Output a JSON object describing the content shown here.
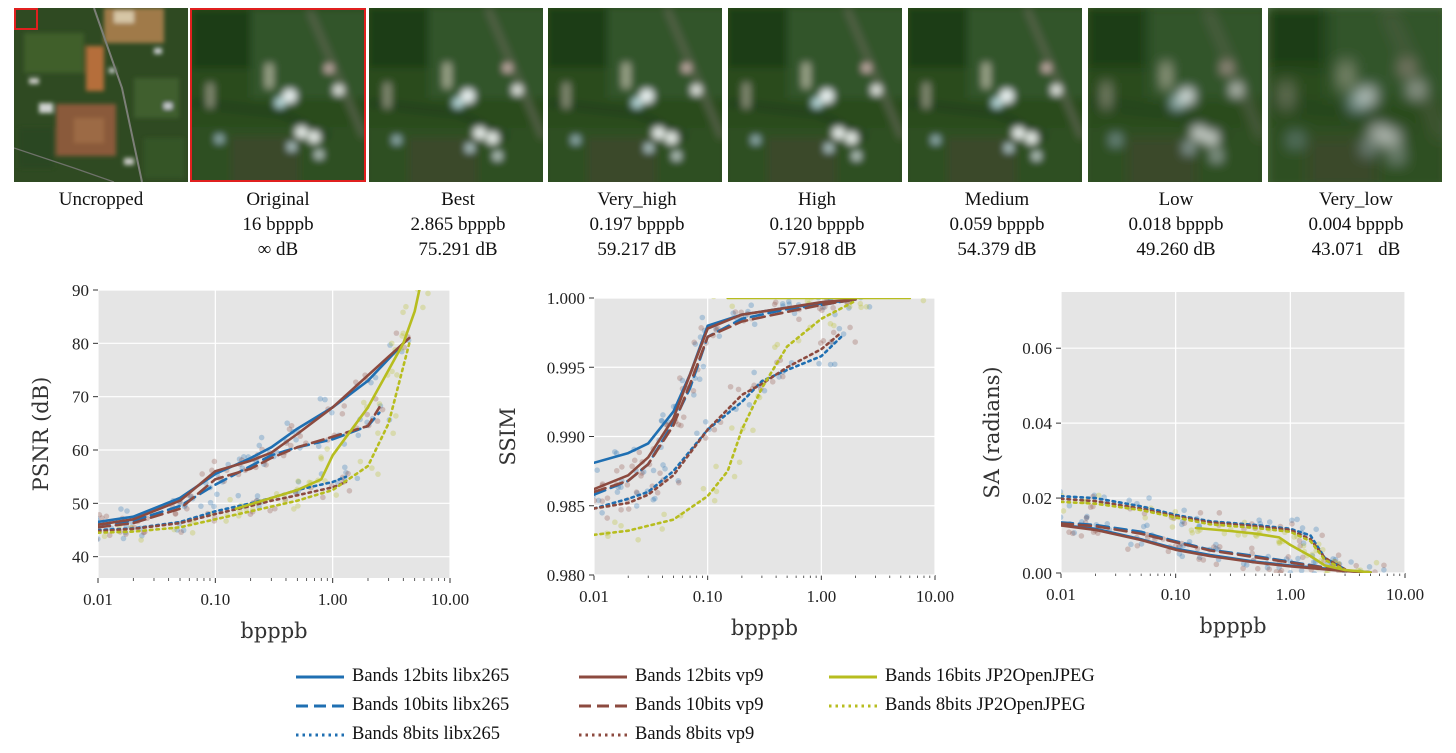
{
  "thumbnails": [
    {
      "label": "Uncropped",
      "bpp": "",
      "db": ""
    },
    {
      "label": "Original",
      "bpp": "16 bpppb",
      "db": "∞ dB"
    },
    {
      "label": "Best",
      "bpp": "2.865 bpppb",
      "db": "75.291 dB"
    },
    {
      "label": "Very_high",
      "bpp": "0.197 bpppb",
      "db": "59.217 dB"
    },
    {
      "label": "High",
      "bpp": "0.120 bpppb",
      "db": "57.918 dB"
    },
    {
      "label": "Medium",
      "bpp": "0.059 bpppb",
      "db": "54.379 dB"
    },
    {
      "label": "Low",
      "bpp": "0.018 bpppb",
      "db": "49.260 dB"
    },
    {
      "label": "Very_low",
      "bpp": "0.004 bpppb",
      "db": "43.071   dB"
    }
  ],
  "colors": {
    "libx265": "#1f6fb2",
    "vp9": "#8c4a3f",
    "jp2": "#b7bd1f",
    "panel_bg": "#e5e5e5",
    "highlight": "#e0201f"
  },
  "legend": [
    {
      "label": "Bands 12bits libx265",
      "codec": "libx265",
      "style": "solid"
    },
    {
      "label": "Bands 10bits libx265",
      "codec": "libx265",
      "style": "dashed"
    },
    {
      "label": "Bands 8bits libx265",
      "codec": "libx265",
      "style": "dotted"
    },
    {
      "label": "Bands 12bits vp9",
      "codec": "vp9",
      "style": "solid"
    },
    {
      "label": "Bands 10bits vp9",
      "codec": "vp9",
      "style": "dashed"
    },
    {
      "label": "Bands 8bits vp9",
      "codec": "vp9",
      "style": "dotted"
    },
    {
      "label": "Bands 16bits JP2OpenJPEG",
      "codec": "jp2",
      "style": "solid"
    },
    {
      "label": "Bands 8bits JP2OpenJPEG",
      "codec": "jp2",
      "style": "dotted"
    }
  ],
  "chart_data": [
    {
      "id": "psnr",
      "type": "line",
      "title": "",
      "xlabel": "bpppb",
      "ylabel": "PSNR (dB)",
      "xscale": "log",
      "xlim": [
        0.01,
        10
      ],
      "ylim": [
        36,
        90
      ],
      "xticks": [
        "0.01",
        "0.10",
        "1.00",
        "10.00"
      ],
      "yticks": [
        40,
        50,
        60,
        70,
        80,
        90
      ],
      "series": [
        {
          "name": "Bands 12bits libx265",
          "x": [
            0.01,
            0.02,
            0.05,
            0.1,
            0.2,
            0.3,
            0.5,
            1.0,
            2.0,
            4.0
          ],
          "y": [
            46.5,
            47.5,
            51,
            55.5,
            58.5,
            60.5,
            64,
            68,
            73,
            80
          ]
        },
        {
          "name": "Bands 10bits libx265",
          "x": [
            0.01,
            0.02,
            0.05,
            0.1,
            0.2,
            0.3,
            0.5,
            1.0,
            2.0,
            2.5
          ],
          "y": [
            46,
            46.7,
            49.5,
            53.5,
            57,
            59,
            60.5,
            62,
            64.5,
            67
          ]
        },
        {
          "name": "Bands 8bits libx265",
          "x": [
            0.01,
            0.02,
            0.05,
            0.1,
            0.2,
            0.3,
            0.5,
            1.0,
            1.3
          ],
          "y": [
            45,
            45.3,
            46.5,
            48.5,
            50,
            51,
            52.5,
            54,
            55
          ]
        },
        {
          "name": "Bands 12bits vp9",
          "x": [
            0.01,
            0.02,
            0.05,
            0.1,
            0.2,
            0.3,
            0.5,
            1.0,
            2.0,
            4.5
          ],
          "y": [
            46,
            47,
            50.5,
            56,
            58,
            59.5,
            63,
            68,
            74,
            81
          ]
        },
        {
          "name": "Bands 10bits vp9",
          "x": [
            0.01,
            0.02,
            0.05,
            0.1,
            0.2,
            0.3,
            0.5,
            1.0,
            2.0,
            2.5
          ],
          "y": [
            45.5,
            46.3,
            49,
            54.5,
            56.5,
            58.5,
            60.5,
            62.5,
            64.5,
            68
          ]
        },
        {
          "name": "Bands 8bits vp9",
          "x": [
            0.01,
            0.02,
            0.05,
            0.1,
            0.2,
            0.3,
            0.5,
            1.0,
            1.3
          ],
          "y": [
            44.8,
            45.2,
            46.3,
            48,
            49.5,
            50.5,
            51.5,
            53,
            54
          ]
        },
        {
          "name": "Bands 16bits JP2OpenJPEG",
          "x": [
            0.15,
            0.3,
            0.5,
            0.8,
            1.0,
            2.0,
            3.0,
            4.0,
            5.0,
            5.6
          ],
          "y": [
            49,
            51,
            52.5,
            54.5,
            59,
            68,
            75,
            80,
            86,
            91
          ]
        },
        {
          "name": "Bands 8bits JP2OpenJPEG",
          "x": [
            0.01,
            0.02,
            0.05,
            0.1,
            0.2,
            0.5,
            1.0,
            2.0,
            3.0,
            4.5
          ],
          "y": [
            44.5,
            44.7,
            45.5,
            47,
            48.5,
            50.5,
            52.5,
            57,
            65,
            80
          ]
        }
      ]
    },
    {
      "id": "ssim",
      "type": "line",
      "title": "",
      "xlabel": "bpppb",
      "ylabel": "SSIM",
      "xscale": "log",
      "xlim": [
        0.01,
        10
      ],
      "ylim": [
        0.98,
        1.0
      ],
      "xticks": [
        "0.01",
        "0.10",
        "1.00",
        "10.00"
      ],
      "yticks": [
        "0.980",
        "0.985",
        "0.990",
        "0.995",
        "1.000"
      ],
      "series": [
        {
          "name": "Bands 12bits libx265",
          "x": [
            0.01,
            0.02,
            0.03,
            0.05,
            0.07,
            0.1,
            0.2,
            0.5,
            1.0,
            2.0
          ],
          "y": [
            0.9881,
            0.9888,
            0.9895,
            0.9918,
            0.9945,
            0.998,
            0.9988,
            0.9993,
            0.9996,
            0.9999
          ]
        },
        {
          "name": "Bands 10bits libx265",
          "x": [
            0.01,
            0.02,
            0.03,
            0.05,
            0.07,
            0.1,
            0.2,
            0.5,
            1.0,
            2.0
          ],
          "y": [
            0.9858,
            0.9868,
            0.988,
            0.991,
            0.9935,
            0.9972,
            0.9985,
            0.9992,
            0.9995,
            0.9999
          ]
        },
        {
          "name": "Bands 8bits libx265",
          "x": [
            0.01,
            0.02,
            0.03,
            0.05,
            0.1,
            0.2,
            0.3,
            0.5,
            1.0,
            1.5
          ],
          "y": [
            0.9848,
            0.9855,
            0.986,
            0.9875,
            0.9905,
            0.9925,
            0.994,
            0.9948,
            0.9958,
            0.9972
          ]
        },
        {
          "name": "Bands 12bits vp9",
          "x": [
            0.01,
            0.02,
            0.03,
            0.05,
            0.07,
            0.1,
            0.2,
            0.5,
            1.0,
            2.0
          ],
          "y": [
            0.9862,
            0.9872,
            0.9885,
            0.9913,
            0.9945,
            0.9978,
            0.9988,
            0.9993,
            0.9997,
            0.9999
          ]
        },
        {
          "name": "Bands 10bits vp9",
          "x": [
            0.01,
            0.02,
            0.03,
            0.05,
            0.07,
            0.1,
            0.2,
            0.5,
            1.0,
            2.0
          ],
          "y": [
            0.986,
            0.9868,
            0.988,
            0.9908,
            0.9938,
            0.9972,
            0.9983,
            0.999,
            0.9995,
            0.9999
          ]
        },
        {
          "name": "Bands 8bits vp9",
          "x": [
            0.01,
            0.02,
            0.03,
            0.05,
            0.1,
            0.2,
            0.3,
            0.5,
            1.0,
            1.5
          ],
          "y": [
            0.9848,
            0.9852,
            0.9858,
            0.9872,
            0.9905,
            0.993,
            0.9938,
            0.995,
            0.9963,
            0.9975
          ]
        },
        {
          "name": "Bands 16bits JP2OpenJPEG",
          "x": [
            0.15,
            0.3,
            1.0,
            2.0,
            6.0
          ],
          "y": [
            1.0,
            1.0,
            1.0,
            1.0,
            1.0
          ]
        },
        {
          "name": "Bands 8bits JP2OpenJPEG",
          "x": [
            0.01,
            0.02,
            0.05,
            0.1,
            0.15,
            0.2,
            0.3,
            0.5,
            1.0,
            2.0
          ],
          "y": [
            0.9829,
            0.9832,
            0.984,
            0.9857,
            0.9875,
            0.9905,
            0.9935,
            0.9965,
            0.9985,
            0.9998
          ]
        }
      ]
    },
    {
      "id": "sa",
      "type": "line",
      "title": "",
      "xlabel": "bpppb",
      "ylabel": "SA (radians)",
      "xscale": "log",
      "xlim": [
        0.01,
        10
      ],
      "ylim": [
        0,
        0.075
      ],
      "xticks": [
        "0.01",
        "0.10",
        "1.00",
        "10.00"
      ],
      "yticks": [
        "0.00",
        "0.02",
        "0.04",
        "0.06"
      ],
      "series": [
        {
          "name": "Bands 12bits libx265",
          "x": [
            0.01,
            0.02,
            0.05,
            0.1,
            0.2,
            0.5,
            1.0,
            2.0,
            3.0,
            5.0
          ],
          "y": [
            0.0128,
            0.0118,
            0.009,
            0.0065,
            0.0048,
            0.003,
            0.002,
            0.0012,
            0.0006,
            0.0002
          ]
        },
        {
          "name": "Bands 10bits libx265",
          "x": [
            0.01,
            0.02,
            0.05,
            0.1,
            0.2,
            0.5,
            1.0,
            2.0,
            3.0,
            5.0
          ],
          "y": [
            0.0135,
            0.0128,
            0.011,
            0.0085,
            0.0062,
            0.0045,
            0.003,
            0.0015,
            0.0007,
            0.0002
          ]
        },
        {
          "name": "Bands 8bits libx265",
          "x": [
            0.01,
            0.02,
            0.05,
            0.1,
            0.2,
            0.5,
            1.0,
            1.5,
            2.0,
            3.0
          ],
          "y": [
            0.0205,
            0.02,
            0.0178,
            0.0155,
            0.0138,
            0.0128,
            0.0118,
            0.01,
            0.004,
            0.001
          ]
        },
        {
          "name": "Bands 12bits vp9",
          "x": [
            0.01,
            0.02,
            0.05,
            0.1,
            0.2,
            0.5,
            1.0,
            2.0,
            3.0,
            5.0
          ],
          "y": [
            0.0127,
            0.0115,
            0.0088,
            0.0062,
            0.0045,
            0.0028,
            0.0018,
            0.001,
            0.0005,
            0.0002
          ]
        },
        {
          "name": "Bands 10bits vp9",
          "x": [
            0.01,
            0.02,
            0.05,
            0.1,
            0.2,
            0.5,
            1.0,
            2.0,
            3.0,
            5.0
          ],
          "y": [
            0.0132,
            0.0125,
            0.0105,
            0.0082,
            0.006,
            0.0042,
            0.0028,
            0.0014,
            0.0006,
            0.0002
          ]
        },
        {
          "name": "Bands 8bits vp9",
          "x": [
            0.01,
            0.02,
            0.05,
            0.1,
            0.2,
            0.5,
            1.0,
            1.5,
            2.0,
            3.0
          ],
          "y": [
            0.0198,
            0.0192,
            0.0172,
            0.0152,
            0.0135,
            0.0125,
            0.0115,
            0.009,
            0.004,
            0.001
          ]
        },
        {
          "name": "Bands 16bits JP2OpenJPEG",
          "x": [
            0.15,
            0.3,
            0.5,
            0.8,
            1.0,
            1.5,
            2.0,
            3.0,
            5.0
          ],
          "y": [
            0.012,
            0.0112,
            0.0105,
            0.0095,
            0.0075,
            0.0045,
            0.002,
            0.0008,
            0.0002
          ]
        },
        {
          "name": "Bands 8bits JP2OpenJPEG",
          "x": [
            0.01,
            0.02,
            0.05,
            0.1,
            0.2,
            0.5,
            1.0,
            1.5,
            2.0,
            3.0
          ],
          "y": [
            0.019,
            0.0185,
            0.0168,
            0.0148,
            0.013,
            0.012,
            0.011,
            0.0085,
            0.0035,
            0.0008
          ]
        }
      ]
    }
  ]
}
